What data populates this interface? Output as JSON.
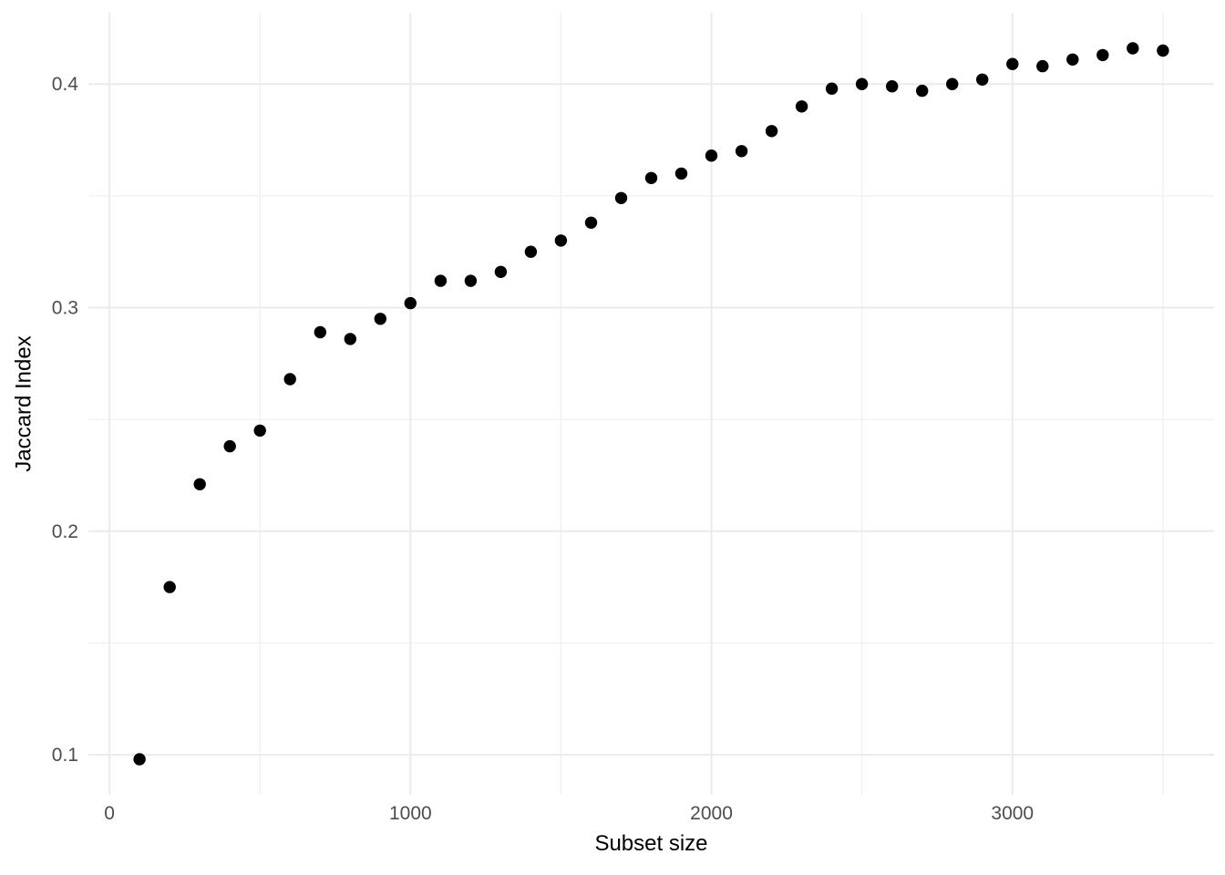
{
  "figure": {
    "background": "#ffffff"
  },
  "chart_data": {
    "type": "scatter",
    "title": "",
    "xlabel": "Subset size",
    "ylabel": "Jaccard Index",
    "x": [
      100,
      200,
      300,
      400,
      500,
      600,
      700,
      800,
      900,
      1000,
      1100,
      1200,
      1300,
      1400,
      1500,
      1600,
      1700,
      1800,
      1900,
      2000,
      2100,
      2200,
      2300,
      2400,
      2500,
      2600,
      2700,
      2800,
      2900,
      3000,
      3100,
      3200,
      3300,
      3400,
      3500
    ],
    "y": [
      0.098,
      0.175,
      0.221,
      0.238,
      0.245,
      0.268,
      0.289,
      0.286,
      0.295,
      0.302,
      0.312,
      0.312,
      0.316,
      0.325,
      0.33,
      0.338,
      0.349,
      0.358,
      0.36,
      0.368,
      0.37,
      0.379,
      0.39,
      0.398,
      0.4,
      0.399,
      0.397,
      0.4,
      0.402,
      0.409,
      0.408,
      0.411,
      0.413,
      0.416,
      0.415
    ],
    "xlim": [
      -70,
      3670
    ],
    "ylim": [
      0.0821,
      0.4319
    ],
    "x_major_ticks": [
      0,
      1000,
      2000,
      3000
    ],
    "x_tick_labels": [
      "0",
      "1000",
      "2000",
      "3000"
    ],
    "x_minor_ticks": [
      500,
      1500,
      2500,
      3500
    ],
    "y_major_ticks": [
      0.1,
      0.2,
      0.3,
      0.4
    ],
    "y_tick_labels": [
      "0.1",
      "0.2",
      "0.3",
      "0.4"
    ],
    "y_minor_ticks": [
      0.15,
      0.25,
      0.35
    ],
    "grid": "major+minor",
    "legend": "none",
    "colors": {
      "point": "#000000",
      "grid_major": "#ebebeb",
      "grid_minor": "#efefef",
      "tick_label": "#4d4d4d",
      "axis_title": "#000000",
      "background": "#ffffff"
    },
    "point_radius_px": 6.7
  }
}
